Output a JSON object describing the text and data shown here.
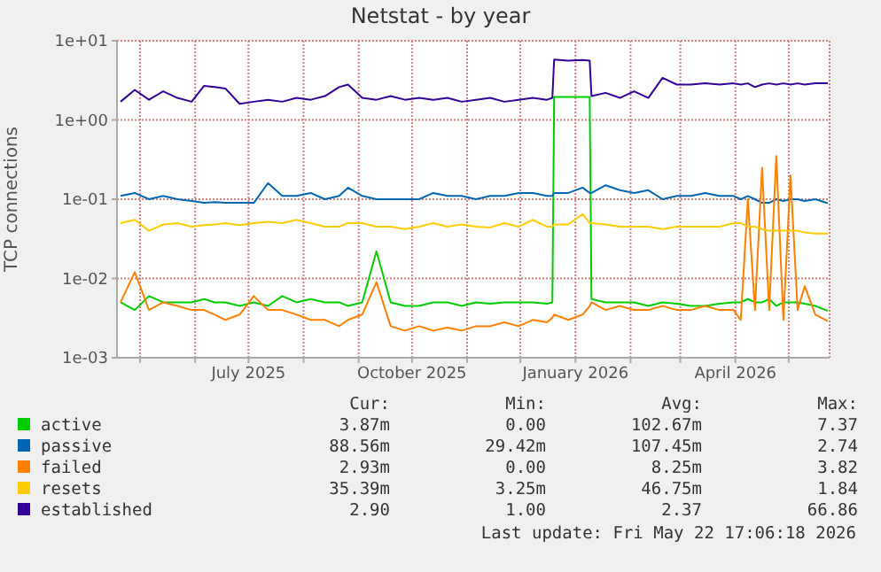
{
  "chart_data": {
    "type": "line",
    "title": "Netstat - by year",
    "ylabel": "TCP connections",
    "log": true,
    "grid": true,
    "legend": "bottom",
    "marker": "none",
    "line_style": "solid",
    "x": [
      "2025-04-20",
      "2025-04-28",
      "2025-05-06",
      "2025-05-14",
      "2025-05-22",
      "2025-05-30",
      "2025-06-06",
      "2025-06-12",
      "2025-06-18",
      "2025-06-26",
      "2025-07-04",
      "2025-07-12",
      "2025-07-20",
      "2025-07-28",
      "2025-08-05",
      "2025-08-13",
      "2025-08-21",
      "2025-08-26",
      "2025-09-03",
      "2025-09-11",
      "2025-09-19",
      "2025-09-27",
      "2025-10-05",
      "2025-10-13",
      "2025-10-21",
      "2025-10-29",
      "2025-11-06",
      "2025-11-14",
      "2025-11-22",
      "2025-11-30",
      "2025-12-08",
      "2025-12-16",
      "2025-12-19",
      "2025-12-20",
      "2025-12-28",
      "2026-01-05",
      "2026-01-09",
      "2026-01-10",
      "2026-01-18",
      "2026-01-26",
      "2026-02-03",
      "2026-02-11",
      "2026-02-19",
      "2026-02-27",
      "2026-03-07",
      "2026-03-15",
      "2026-03-23",
      "2026-03-31",
      "2026-04-04",
      "2026-04-08",
      "2026-04-12",
      "2026-04-16",
      "2026-04-20",
      "2026-04-24",
      "2026-04-28",
      "2026-05-02",
      "2026-05-06",
      "2026-05-10",
      "2026-05-16",
      "2026-05-23"
    ],
    "xlim": [
      "2025-04-18",
      "2026-05-24"
    ],
    "xticks": [
      {
        "value": "2025-05-01",
        "label": null
      },
      {
        "value": "2025-06-01",
        "label": null
      },
      {
        "value": "2025-07-01",
        "label": "July 2025"
      },
      {
        "value": "2025-08-01",
        "label": null
      },
      {
        "value": "2025-09-01",
        "label": null
      },
      {
        "value": "2025-10-01",
        "label": "October 2025"
      },
      {
        "value": "2025-11-01",
        "label": null
      },
      {
        "value": "2025-12-01",
        "label": null
      },
      {
        "value": "2026-01-01",
        "label": "January 2026"
      },
      {
        "value": "2026-02-01",
        "label": null
      },
      {
        "value": "2026-03-01",
        "label": null
      },
      {
        "value": "2026-04-01",
        "label": "April 2026"
      },
      {
        "value": "2026-05-01",
        "label": null
      }
    ],
    "ylim": [
      0.001,
      10
    ],
    "yticks": [
      {
        "value": 0.001,
        "label": "1e-03"
      },
      {
        "value": 0.01,
        "label": "1e-02"
      },
      {
        "value": 0.1,
        "label": "1e-01"
      },
      {
        "value": 1,
        "label": "1e+00"
      },
      {
        "value": 10,
        "label": "1e+01"
      }
    ],
    "series": [
      {
        "name": "active",
        "color": "#00cc00",
        "values": [
          0.005,
          0.004,
          0.006,
          0.005,
          0.005,
          0.005,
          0.0055,
          0.005,
          0.005,
          0.0045,
          0.005,
          0.0045,
          0.006,
          0.005,
          0.0055,
          0.005,
          0.005,
          0.0045,
          0.005,
          0.022,
          0.005,
          0.0045,
          0.0045,
          0.005,
          0.005,
          0.0045,
          0.005,
          0.0048,
          0.005,
          0.005,
          0.005,
          0.0048,
          0.005,
          1.95,
          1.95,
          1.95,
          1.95,
          0.0055,
          0.005,
          0.005,
          0.005,
          0.0045,
          0.005,
          0.0048,
          0.0045,
          0.0045,
          0.0048,
          0.005,
          0.005,
          0.0055,
          0.005,
          0.005,
          0.0055,
          0.0045,
          0.005,
          0.005,
          0.005,
          0.0048,
          0.0045,
          0.0039
        ]
      },
      {
        "name": "passive",
        "color": "#0066b3",
        "values": [
          0.11,
          0.12,
          0.1,
          0.11,
          0.1,
          0.095,
          0.09,
          0.092,
          0.09,
          0.09,
          0.09,
          0.16,
          0.11,
          0.11,
          0.12,
          0.1,
          0.11,
          0.14,
          0.11,
          0.1,
          0.1,
          0.1,
          0.1,
          0.12,
          0.11,
          0.11,
          0.1,
          0.11,
          0.11,
          0.12,
          0.12,
          0.11,
          0.11,
          0.12,
          0.12,
          0.14,
          0.12,
          0.12,
          0.15,
          0.13,
          0.12,
          0.13,
          0.1,
          0.11,
          0.11,
          0.12,
          0.11,
          0.11,
          0.1,
          0.11,
          0.1,
          0.09,
          0.09,
          0.1,
          0.095,
          0.1,
          0.1,
          0.095,
          0.1,
          0.089
        ]
      },
      {
        "name": "failed",
        "color": "#ff8000",
        "values": [
          0.005,
          0.012,
          0.004,
          0.005,
          0.0045,
          0.004,
          0.004,
          0.0035,
          0.003,
          0.0035,
          0.006,
          0.004,
          0.004,
          0.0035,
          0.003,
          0.003,
          0.0025,
          0.003,
          0.0035,
          0.009,
          0.0025,
          0.0022,
          0.0025,
          0.0022,
          0.0024,
          0.0022,
          0.0025,
          0.0025,
          0.0028,
          0.0025,
          0.003,
          0.0028,
          0.0032,
          0.0035,
          0.003,
          0.0035,
          0.0045,
          0.005,
          0.004,
          0.0045,
          0.004,
          0.004,
          0.0045,
          0.004,
          0.004,
          0.0045,
          0.004,
          0.004,
          0.003,
          0.1,
          0.004,
          0.25,
          0.004,
          0.35,
          0.003,
          0.2,
          0.004,
          0.008,
          0.0035,
          0.0029
        ]
      },
      {
        "name": "resets",
        "color": "#ffcc00",
        "values": [
          0.05,
          0.055,
          0.04,
          0.048,
          0.05,
          0.045,
          0.047,
          0.048,
          0.05,
          0.047,
          0.05,
          0.052,
          0.05,
          0.055,
          0.05,
          0.045,
          0.045,
          0.05,
          0.05,
          0.045,
          0.045,
          0.042,
          0.045,
          0.05,
          0.045,
          0.048,
          0.045,
          0.044,
          0.05,
          0.045,
          0.055,
          0.045,
          0.045,
          0.048,
          0.048,
          0.065,
          0.05,
          0.05,
          0.048,
          0.045,
          0.045,
          0.045,
          0.042,
          0.045,
          0.045,
          0.045,
          0.045,
          0.05,
          0.05,
          0.045,
          0.045,
          0.042,
          0.04,
          0.04,
          0.04,
          0.04,
          0.04,
          0.038,
          0.037,
          0.037
        ]
      },
      {
        "name": "established",
        "color": "#330099",
        "values": [
          1.7,
          2.4,
          1.8,
          2.3,
          1.9,
          1.7,
          2.7,
          2.6,
          2.5,
          1.6,
          1.7,
          1.8,
          1.7,
          1.9,
          1.8,
          2.0,
          2.6,
          2.8,
          1.9,
          1.8,
          2.0,
          1.8,
          1.9,
          1.8,
          1.9,
          1.7,
          1.8,
          1.9,
          1.7,
          1.8,
          1.9,
          1.8,
          1.9,
          5.8,
          5.6,
          5.7,
          5.6,
          2.0,
          2.2,
          1.9,
          2.3,
          1.9,
          3.4,
          2.8,
          2.8,
          2.9,
          2.8,
          2.9,
          2.8,
          2.9,
          2.6,
          2.8,
          2.9,
          2.8,
          2.9,
          2.8,
          2.9,
          2.8,
          2.9,
          2.9
        ]
      }
    ],
    "annotations": [
      "Cur:",
      "Min:",
      "Avg:",
      "Max:",
      "3.87m",
      "0.00",
      "102.67m",
      "7.37",
      "88.56m",
      "29.42m",
      "107.45m",
      "2.74",
      "2.93m",
      "0.00",
      "8.25m",
      "3.82",
      "35.39m",
      "3.25m",
      "46.75m",
      "1.84",
      "2.90",
      "1.00",
      "2.37",
      "66.86",
      "Last update: Fri May 22 17:06:18 2026"
    ]
  }
}
